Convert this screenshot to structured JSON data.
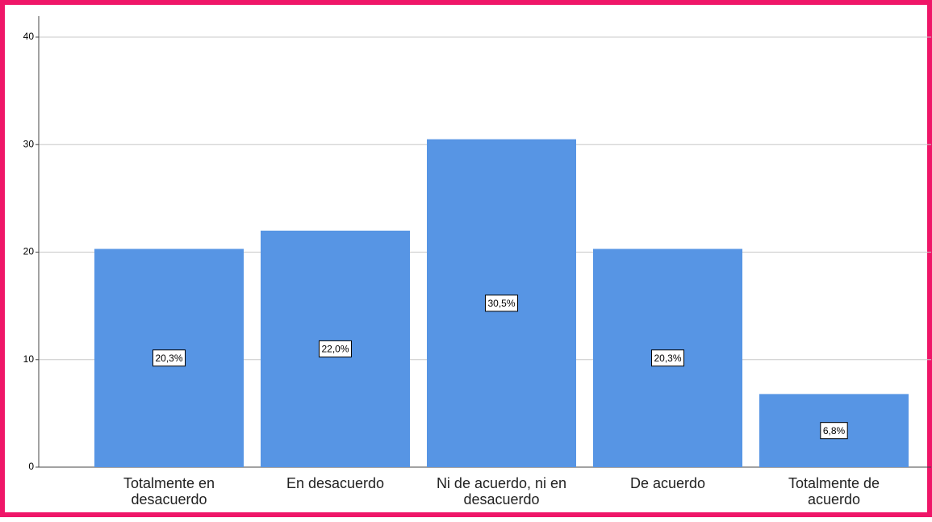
{
  "chart_data": {
    "type": "bar",
    "categories": [
      "Totalmente en desacuerdo",
      "En desacuerdo",
      "Ni de acuerdo, ni en desacuerdo",
      "De acuerdo",
      "Totalmente de acuerdo"
    ],
    "values": [
      20.3,
      22.0,
      30.5,
      20.3,
      6.8
    ],
    "value_labels": [
      "20,3%",
      "22,0%",
      "30,5%",
      "20,3%",
      "6,8%"
    ],
    "color": "#5795e4",
    "ylim": [
      0,
      40
    ],
    "yticks": [
      0,
      10,
      20,
      30,
      40
    ],
    "grid": true
  }
}
